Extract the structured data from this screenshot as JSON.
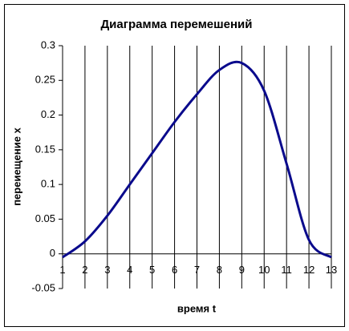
{
  "chart_data": {
    "type": "line",
    "title": "Диаграмма перемешений",
    "x_label": "время t",
    "y_label": "переиещение х",
    "x": [
      1,
      2,
      3,
      4,
      5,
      6,
      7,
      8,
      9,
      10,
      11,
      12,
      13
    ],
    "series": [
      {
        "name": "перемещение",
        "color": "#0a0a8c",
        "values": [
          -0.005,
          0.018,
          0.055,
          0.1,
          0.145,
          0.19,
          0.23,
          0.265,
          0.275,
          0.235,
          0.13,
          0.02,
          -0.005
        ]
      }
    ],
    "xlim": [
      1,
      13
    ],
    "xticks": [
      1,
      2,
      3,
      4,
      5,
      6,
      7,
      8,
      9,
      10,
      11,
      12,
      13
    ],
    "ylim": [
      -0.05,
      0.3
    ],
    "yticks": [
      -0.05,
      0,
      0.05,
      0.1,
      0.15,
      0.2,
      0.25,
      0.3
    ],
    "grid": "x"
  }
}
